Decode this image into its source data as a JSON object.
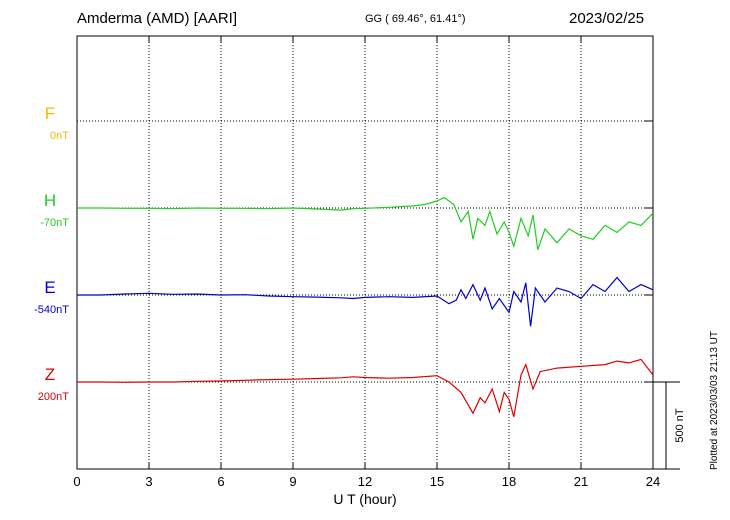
{
  "header": {
    "station": "Amderma (AMD)  [AARI]",
    "coords": "GG ( 69.46°,  61.41°)",
    "date": "2023/02/25"
  },
  "plotted_note": "Plotted at 2023/03/03 21:13 UT",
  "chart_data": {
    "type": "line",
    "title": "Amderma (AMD)  [AARI]",
    "xlabel": "U T (hour)",
    "xlim": [
      0,
      24
    ],
    "xticks": [
      "0",
      "3",
      "6",
      "9",
      "12",
      "15",
      "18",
      "21",
      "24"
    ],
    "grid": true,
    "scale_bar": {
      "label": "500 nT",
      "value_nT": 500
    },
    "colors": {
      "F": "#f5b800",
      "H": "#22cc22",
      "E": "#0000cc",
      "Z": "#dd0000"
    },
    "series": [
      {
        "name": "F",
        "offset_label": "0nT",
        "values": []
      },
      {
        "name": "H",
        "offset_label": "-70nT",
        "points": [
          [
            0,
            0
          ],
          [
            1,
            0
          ],
          [
            2,
            -2
          ],
          [
            3,
            -2
          ],
          [
            4,
            -4
          ],
          [
            5,
            0
          ],
          [
            6,
            -2
          ],
          [
            7,
            -2
          ],
          [
            8,
            -4
          ],
          [
            9,
            0
          ],
          [
            10,
            -6
          ],
          [
            11,
            -12
          ],
          [
            11.5,
            -4
          ],
          [
            12,
            -2
          ],
          [
            13,
            4
          ],
          [
            14,
            12
          ],
          [
            14.5,
            20
          ],
          [
            15,
            40
          ],
          [
            15.3,
            60
          ],
          [
            15.7,
            20
          ],
          [
            16,
            -80
          ],
          [
            16.3,
            -20
          ],
          [
            16.5,
            -180
          ],
          [
            16.7,
            -60
          ],
          [
            17,
            -100
          ],
          [
            17.2,
            -20
          ],
          [
            17.5,
            -150
          ],
          [
            17.8,
            -80
          ],
          [
            18,
            -140
          ],
          [
            18.2,
            -220
          ],
          [
            18.5,
            -60
          ],
          [
            18.8,
            -160
          ],
          [
            19,
            -40
          ],
          [
            19.2,
            -240
          ],
          [
            19.5,
            -120
          ],
          [
            20,
            -200
          ],
          [
            20.5,
            -120
          ],
          [
            21,
            -160
          ],
          [
            21.5,
            -180
          ],
          [
            22,
            -100
          ],
          [
            22.5,
            -140
          ],
          [
            23,
            -80
          ],
          [
            23.5,
            -100
          ],
          [
            24,
            -30
          ]
        ]
      },
      {
        "name": "E",
        "offset_label": "-540nT",
        "points": [
          [
            0,
            0
          ],
          [
            1,
            0
          ],
          [
            2,
            6
          ],
          [
            3,
            10
          ],
          [
            4,
            4
          ],
          [
            5,
            6
          ],
          [
            6,
            0
          ],
          [
            7,
            2
          ],
          [
            8,
            -6
          ],
          [
            9,
            -10
          ],
          [
            10,
            -12
          ],
          [
            11,
            -16
          ],
          [
            11.5,
            -20
          ],
          [
            12,
            -14
          ],
          [
            13,
            -10
          ],
          [
            14,
            -14
          ],
          [
            15,
            -6
          ],
          [
            15.5,
            -50
          ],
          [
            15.8,
            -30
          ],
          [
            16,
            30
          ],
          [
            16.2,
            -20
          ],
          [
            16.5,
            60
          ],
          [
            16.8,
            -30
          ],
          [
            17,
            40
          ],
          [
            17.3,
            -80
          ],
          [
            17.6,
            -20
          ],
          [
            18,
            -100
          ],
          [
            18.2,
            20
          ],
          [
            18.5,
            -40
          ],
          [
            18.7,
            70
          ],
          [
            18.9,
            -180
          ],
          [
            19.1,
            40
          ],
          [
            19.5,
            -40
          ],
          [
            20,
            40
          ],
          [
            20.5,
            20
          ],
          [
            21,
            -20
          ],
          [
            21.5,
            60
          ],
          [
            22,
            20
          ],
          [
            22.5,
            100
          ],
          [
            23,
            20
          ],
          [
            23.5,
            60
          ],
          [
            24,
            30
          ]
        ]
      },
      {
        "name": "Z",
        "offset_label": "200nT",
        "points": [
          [
            0,
            0
          ],
          [
            1,
            0
          ],
          [
            2,
            -2
          ],
          [
            3,
            0
          ],
          [
            4,
            0
          ],
          [
            5,
            4
          ],
          [
            6,
            6
          ],
          [
            7,
            10
          ],
          [
            8,
            14
          ],
          [
            9,
            16
          ],
          [
            10,
            20
          ],
          [
            11,
            24
          ],
          [
            11.5,
            30
          ],
          [
            12,
            26
          ],
          [
            13,
            22
          ],
          [
            14,
            26
          ],
          [
            15,
            36
          ],
          [
            15.5,
            0
          ],
          [
            16,
            -60
          ],
          [
            16.5,
            -180
          ],
          [
            16.8,
            -90
          ],
          [
            17,
            -120
          ],
          [
            17.3,
            -40
          ],
          [
            17.6,
            -170
          ],
          [
            17.8,
            -60
          ],
          [
            18,
            -100
          ],
          [
            18.2,
            -200
          ],
          [
            18.5,
            40
          ],
          [
            18.7,
            100
          ],
          [
            19,
            -40
          ],
          [
            19.3,
            60
          ],
          [
            20,
            80
          ],
          [
            21,
            90
          ],
          [
            22,
            100
          ],
          [
            22.5,
            120
          ],
          [
            23,
            110
          ],
          [
            23.5,
            130
          ],
          [
            24,
            40
          ]
        ]
      }
    ]
  }
}
